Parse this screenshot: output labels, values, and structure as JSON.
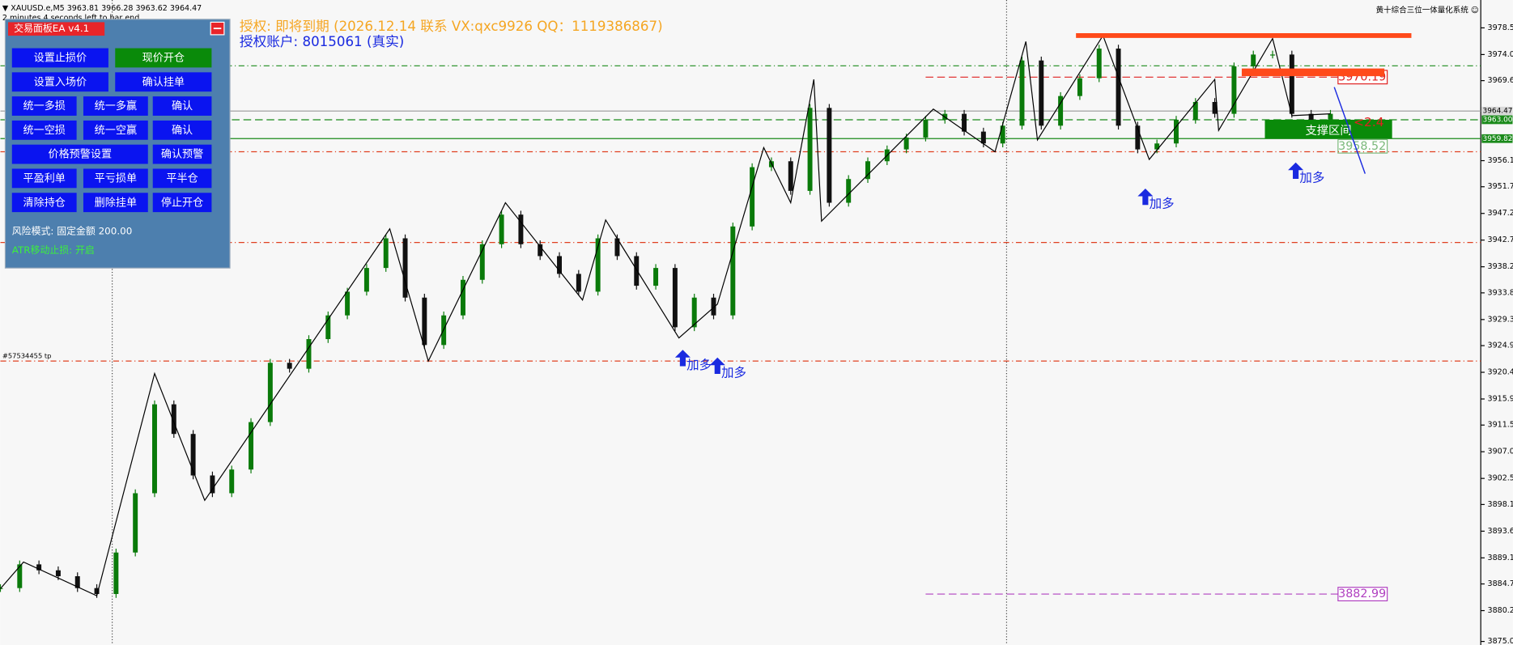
{
  "header": {
    "symbol_line": "▼ XAUUSD.e,M5  3963.81 3966.28 3963.62 3964.47",
    "timer_line": "2 minutes 4 seconds left to bar end",
    "license_line": "授权: 即将到期 (2026.12.14 联系 VX:qxc9926 QQ：1119386867)",
    "account_line": "授权账户: 8015061 (真实)",
    "system_name": "黄十综合三位一体量化系统 ☺"
  },
  "panel": {
    "title": "交易面板EA v4.1",
    "rows": [
      [
        {
          "label": "设置止损价",
          "color": "#0a14f0"
        },
        {
          "label": "现价开仓",
          "color": "#0a8a0a"
        }
      ],
      [
        {
          "label": "设置入场价",
          "color": "#0a14f0"
        },
        {
          "label": "确认挂单",
          "color": "#0a14f0"
        }
      ],
      [
        {
          "label": "统一多损",
          "color": "#0a14f0"
        },
        {
          "label": "统一多赢",
          "color": "#0a14f0"
        },
        {
          "label": "确认",
          "color": "#0a14f0"
        }
      ],
      [
        {
          "label": "统一空损",
          "color": "#0a14f0"
        },
        {
          "label": "统一空赢",
          "color": "#0a14f0"
        },
        {
          "label": "确认",
          "color": "#0a14f0"
        }
      ],
      [
        {
          "label": "价格预警设置",
          "color": "#0a14f0"
        },
        {
          "label": "确认预警",
          "color": "#0a14f0"
        }
      ],
      [
        {
          "label": "平盈利单",
          "color": "#0a14f0"
        },
        {
          "label": "平亏损单",
          "color": "#0a14f0"
        },
        {
          "label": "平半仓",
          "color": "#0a14f0"
        }
      ],
      [
        {
          "label": "清除持仓",
          "color": "#0a14f0"
        },
        {
          "label": "删除挂单",
          "color": "#0a14f0"
        },
        {
          "label": "停止开仓",
          "color": "#0a14f0"
        }
      ]
    ],
    "risk_mode": "风险模式: 固定金额 200.00",
    "atr_stop": "ATR移动止损: 开启"
  },
  "chart_data": {
    "type": "candlestick",
    "ylim": [
      3874.4,
      3983.2
    ],
    "xlim": [
      0,
      384
    ],
    "yticks": [
      {
        "value": 3978.5,
        "label": "3978.50"
      },
      {
        "value": 3974,
        "label": "3974.00"
      },
      {
        "value": 3969.6,
        "label": "3969.60"
      },
      {
        "value": 3956.1,
        "label": "3956.10"
      },
      {
        "value": 3951.7,
        "label": "3951.70"
      },
      {
        "value": 3947.2,
        "label": "3947.20"
      },
      {
        "value": 3942.7,
        "label": "3942.70"
      },
      {
        "value": 3938.2,
        "label": "3938.20"
      },
      {
        "value": 3933.8,
        "label": "3933.80"
      },
      {
        "value": 3929.3,
        "label": "3929.30"
      },
      {
        "value": 3924.9,
        "label": "3924.90"
      },
      {
        "value": 3920.4,
        "label": "3920.40"
      },
      {
        "value": 3915.9,
        "label": "3915.90"
      },
      {
        "value": 3911.5,
        "label": "3911.50"
      },
      {
        "value": 3907,
        "label": "3907.00"
      },
      {
        "value": 3902.5,
        "label": "3902.50"
      },
      {
        "value": 3898.1,
        "label": "3898.10"
      },
      {
        "value": 3893.6,
        "label": "3893.60"
      },
      {
        "value": 3889.1,
        "label": "3889.10"
      },
      {
        "value": 3884.7,
        "label": "3884.70"
      },
      {
        "value": 3880.2,
        "label": "3880.20"
      },
      {
        "value": 3875,
        "label": "3875.00"
      }
    ],
    "bar_step": 5,
    "up_color": "#0a7a0a",
    "down_color": "#111111",
    "closes": [
      3884,
      3888,
      3887,
      3886,
      3884,
      3883,
      3890,
      3900,
      3915,
      3910,
      3903,
      3900,
      3904,
      3912,
      3922,
      3921,
      3926,
      3930,
      3934,
      3938,
      3943,
      3933,
      3925,
      3930,
      3936,
      3942,
      3947,
      3942,
      3940,
      3937,
      3934,
      3943,
      3940,
      3935,
      3938,
      3928,
      3933,
      3930,
      3945,
      3955,
      3956,
      3951,
      3965,
      3949,
      3953,
      3956,
      3958,
      3960,
      3963,
      3964,
      3961,
      3959,
      3962,
      3973,
      3962,
      3967,
      3970,
      3975,
      3962,
      3958,
      3959,
      3963,
      3966,
      3964,
      3972,
      3974,
      3974,
      3964,
      3963,
      3964
    ],
    "zigzag": {
      "color": "#000000",
      "bars": [
        0,
        6,
        25,
        40,
        53,
        101,
        111,
        131,
        151,
        157,
        176,
        186,
        198,
        205,
        211,
        213,
        242,
        258,
        266,
        269,
        286,
        298,
        315,
        316,
        330,
        335,
        345
      ],
      "prices": [
        3883.9,
        3888.4,
        3882.7,
        3920.2,
        3898.8,
        3944.6,
        3922.3,
        3949.0,
        3932.6,
        3946.1,
        3926.2,
        3931.9,
        3958.3,
        3949.0,
        3969.8,
        3945.9,
        3964.8,
        3957.6,
        3976.2,
        3959.6,
        3977.2,
        3956.3,
        3969.8,
        3961.2,
        3976.7,
        3963.7,
        3964.0
      ]
    },
    "separators": [
      29,
      261
    ],
    "levels": [
      {
        "price": 3972.1,
        "color": "#1a8a1a",
        "dash": "6 3 1 3",
        "from_bar": 0
      },
      {
        "price": 3970.19,
        "color": "#e02020",
        "dash": "8 4",
        "from_bar": 240,
        "label": "3970.19"
      },
      {
        "price": 3964.47,
        "color": "#999999",
        "dash": "none",
        "from_bar": 0
      },
      {
        "price": 3963.0,
        "color": "#1a8a1a",
        "dash": "8 4",
        "from_bar": 0
      },
      {
        "price": 3959.82,
        "color": "#1a8a1a",
        "dash": "none",
        "from_bar": 0
      },
      {
        "price": 3958.52,
        "color": "#7ab87a",
        "dash": "none",
        "from_bar": 346,
        "label": "3958.52"
      },
      {
        "price": 3957.6,
        "color": "#e04020",
        "dash": "6 3 1 3",
        "from_bar": 0
      },
      {
        "price": 3942.3,
        "color": "#e04020",
        "dash": "6 3 1 3",
        "from_bar": 0
      },
      {
        "price": 3922.3,
        "color": "#e04020",
        "dash": "6 3 1 3",
        "from_bar": 0,
        "tag": "#57534455 tp"
      },
      {
        "price": 3882.99,
        "color": "#b040c0",
        "dash": "8 4",
        "from_bar": 240,
        "label": "3882.99"
      }
    ],
    "axis_labels": [
      {
        "value": 3964.47,
        "label": "3964.47",
        "bg": "#d8d8d8",
        "fg": "#000000"
      },
      {
        "value": 3963.0,
        "label": "3963.00",
        "bg": "#1a8a1a",
        "fg": "#ffffff"
      },
      {
        "value": 3959.82,
        "label": "3959.82",
        "bg": "#1a8a1a",
        "fg": "#ffffff"
      }
    ],
    "resistance": [
      {
        "price": 3977.2,
        "from_bar": 279,
        "to_bar": 366,
        "color": "#ff4a1a"
      },
      {
        "price": 3971.0,
        "from_bar": 322,
        "to_bar": 359,
        "color": "#ff4a1a"
      }
    ],
    "support_zone": {
      "top": 3963.0,
      "bottom": 3959.82,
      "from_bar": 328,
      "to_bar": 361,
      "color": "#0a8a0a",
      "label": "支撑区间"
    },
    "risk_reward": {
      "text": "<2.4",
      "bar": 351,
      "price": 3962.5
    },
    "trend_line": {
      "bars": [
        346,
        354
      ],
      "prices": [
        3968.5,
        3953.9
      ],
      "color": "#1a2ae0"
    },
    "signals": [
      {
        "bar": 177,
        "price": 3924.2,
        "label": "加多"
      },
      {
        "bar": 186,
        "price": 3922.9,
        "label": "加多"
      },
      {
        "bar": 297,
        "price": 3951.4,
        "label": "加多"
      },
      {
        "bar": 336,
        "price": 3955.8,
        "label": "加多"
      }
    ]
  }
}
